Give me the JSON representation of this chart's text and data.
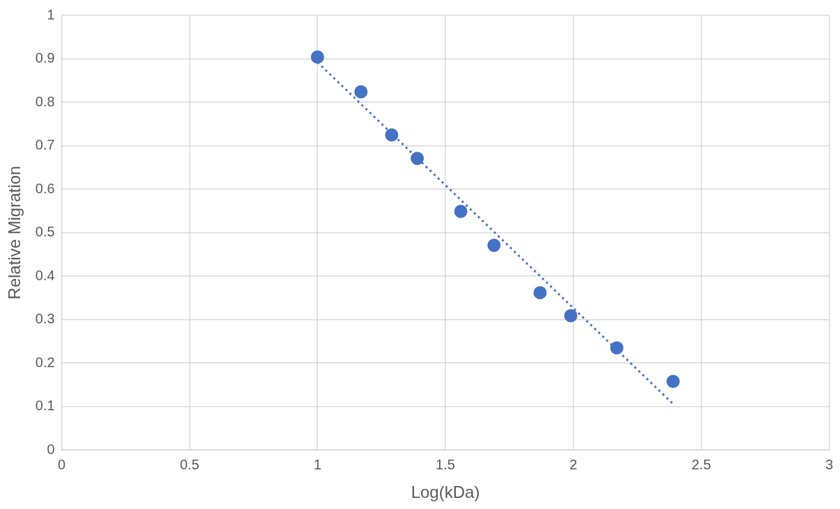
{
  "chart_data": {
    "type": "scatter",
    "xlabel": "Log(kDa)",
    "ylabel": "Relative Migration",
    "xlim": [
      0,
      3
    ],
    "xticks": [
      0,
      0.5,
      1,
      1.5,
      2,
      2.5,
      3
    ],
    "ylim": [
      0,
      1
    ],
    "yticks": [
      0,
      0.1,
      0.2,
      0.3,
      0.4,
      0.5,
      0.6,
      0.7,
      0.8,
      0.9,
      1
    ],
    "grid": true,
    "legend": false,
    "marker": "circle",
    "series": [
      {
        "type": "scatter",
        "color": "#4472c4",
        "x": [
          1.0,
          1.17,
          1.29,
          1.39,
          1.56,
          1.69,
          1.87,
          1.99,
          2.17,
          2.39
        ],
        "values": [
          0.904,
          0.824,
          0.725,
          0.671,
          0.549,
          0.471,
          0.362,
          0.309,
          0.235,
          0.158
        ]
      },
      {
        "type": "line",
        "color": "#4472c4",
        "line_style": "dotted",
        "marker": "none",
        "x": [
          1.0,
          2.39
        ],
        "values": [
          0.892,
          0.106
        ]
      }
    ]
  }
}
